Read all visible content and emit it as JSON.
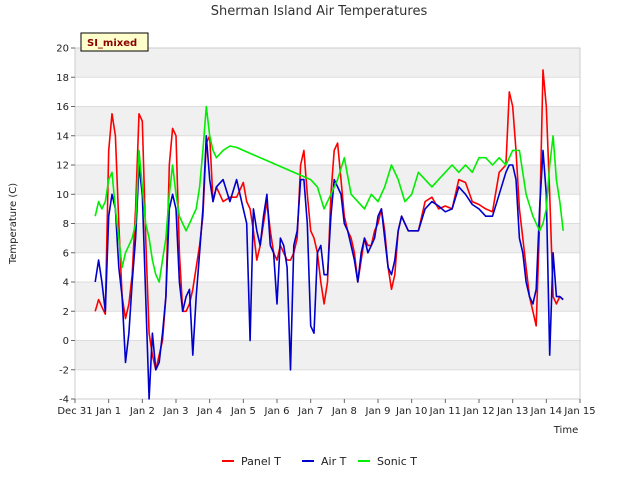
{
  "chart_data": {
    "type": "line",
    "title": "Sherman Island Air Temperatures",
    "xlabel": "Time",
    "ylabel": "Temperature (C)",
    "badge": "SI_mixed",
    "ylim": [
      -4,
      20
    ],
    "yticks": [
      -4,
      -2,
      0,
      2,
      4,
      6,
      8,
      10,
      12,
      14,
      16,
      18,
      20
    ],
    "xlim": [
      0,
      15
    ],
    "xticks": [
      {
        "x": 0,
        "label": "Dec 31"
      },
      {
        "x": 1,
        "label": "Jan 1"
      },
      {
        "x": 2,
        "label": "Jan 2"
      },
      {
        "x": 3,
        "label": "Jan 3"
      },
      {
        "x": 4,
        "label": "Jan 4"
      },
      {
        "x": 5,
        "label": "Jan 5"
      },
      {
        "x": 6,
        "label": "Jan 6"
      },
      {
        "x": 7,
        "label": "Jan 7"
      },
      {
        "x": 8,
        "label": "Jan 8"
      },
      {
        "x": 9,
        "label": "Jan 9"
      },
      {
        "x": 10,
        "label": "Jan 10"
      },
      {
        "x": 11,
        "label": "Jan 11"
      },
      {
        "x": 12,
        "label": "Jan 12"
      },
      {
        "x": 13,
        "label": "Jan 13"
      },
      {
        "x": 14,
        "label": "Jan 14"
      },
      {
        "x": 15,
        "label": "Jan 15"
      }
    ],
    "grid": true,
    "legend_position": "bottom-center",
    "series": [
      {
        "name": "Panel T",
        "color": "#ff0000",
        "x": [
          0.6,
          0.7,
          0.8,
          0.9,
          1.0,
          1.1,
          1.2,
          1.3,
          1.4,
          1.5,
          1.6,
          1.7,
          1.8,
          1.9,
          2.0,
          2.1,
          2.2,
          2.3,
          2.4,
          2.5,
          2.6,
          2.7,
          2.8,
          2.9,
          3.0,
          3.1,
          3.2,
          3.3,
          3.4,
          3.5,
          3.6,
          3.7,
          3.8,
          3.9,
          4.0,
          4.1,
          4.2,
          4.4,
          4.6,
          4.8,
          5.0,
          5.1,
          5.2,
          5.3,
          5.4,
          5.5,
          5.6,
          5.7,
          5.8,
          5.9,
          6.0,
          6.1,
          6.2,
          6.3,
          6.4,
          6.5,
          6.6,
          6.7,
          6.8,
          6.9,
          7.0,
          7.1,
          7.2,
          7.3,
          7.4,
          7.5,
          7.6,
          7.7,
          7.8,
          7.9,
          8.0,
          8.1,
          8.2,
          8.3,
          8.4,
          8.5,
          8.6,
          8.7,
          8.8,
          8.9,
          9.0,
          9.1,
          9.2,
          9.3,
          9.4,
          9.5,
          9.6,
          9.7,
          9.8,
          9.9,
          10.0,
          10.2,
          10.4,
          10.6,
          10.8,
          11.0,
          11.2,
          11.4,
          11.6,
          11.8,
          12.0,
          12.2,
          12.4,
          12.6,
          12.8,
          12.9,
          13.0,
          13.1,
          13.2,
          13.3,
          13.4,
          13.5,
          13.6,
          13.7,
          13.8,
          13.9,
          14.0,
          14.1,
          14.2,
          14.3,
          14.4,
          14.5
        ],
        "values": [
          2.0,
          2.8,
          2.3,
          1.8,
          13.0,
          15.5,
          14.0,
          8.0,
          3.0,
          1.5,
          2.5,
          4.5,
          9.0,
          15.5,
          15.0,
          7.0,
          0.5,
          -1.0,
          -2.0,
          -1.0,
          0.0,
          3.0,
          12.0,
          14.5,
          14.0,
          6.0,
          2.0,
          2.0,
          2.5,
          3.5,
          5.0,
          6.5,
          8.5,
          13.5,
          14.0,
          9.5,
          10.5,
          9.5,
          9.8,
          9.8,
          10.8,
          9.5,
          9.0,
          7.5,
          5.5,
          6.5,
          8.0,
          9.5,
          7.5,
          6.0,
          5.5,
          6.5,
          6.0,
          5.5,
          5.5,
          6.0,
          7.0,
          12.0,
          13.0,
          10.0,
          7.5,
          7.0,
          6.0,
          4.0,
          2.5,
          4.0,
          10.0,
          13.0,
          13.5,
          11.0,
          8.5,
          7.5,
          7.0,
          6.0,
          4.0,
          5.5,
          7.0,
          6.5,
          6.5,
          7.5,
          8.0,
          9.0,
          7.5,
          5.0,
          3.5,
          4.5,
          7.5,
          8.5,
          8.0,
          7.5,
          7.5,
          7.5,
          9.5,
          9.8,
          9.0,
          9.2,
          9.0,
          11.0,
          10.8,
          9.5,
          9.3,
          9.0,
          8.8,
          11.5,
          12.0,
          17.0,
          16.0,
          13.0,
          9.0,
          7.0,
          5.0,
          3.0,
          2.0,
          1.0,
          8.0,
          18.5,
          16.0,
          10.0,
          3.0,
          2.5,
          3.0,
          2.8
        ]
      },
      {
        "name": "Air T",
        "color": "#0000cc",
        "x": [
          0.6,
          0.7,
          0.8,
          0.9,
          1.0,
          1.1,
          1.2,
          1.3,
          1.4,
          1.5,
          1.6,
          1.7,
          1.8,
          1.9,
          2.0,
          2.1,
          2.2,
          2.3,
          2.4,
          2.5,
          2.6,
          2.7,
          2.8,
          2.9,
          3.0,
          3.1,
          3.2,
          3.3,
          3.4,
          3.5,
          3.6,
          3.7,
          3.8,
          3.9,
          4.0,
          4.1,
          4.2,
          4.4,
          4.6,
          4.8,
          5.0,
          5.1,
          5.2,
          5.3,
          5.4,
          5.5,
          5.6,
          5.7,
          5.8,
          5.9,
          6.0,
          6.1,
          6.2,
          6.3,
          6.4,
          6.5,
          6.6,
          6.7,
          6.8,
          6.9,
          7.0,
          7.1,
          7.2,
          7.3,
          7.4,
          7.5,
          7.6,
          7.7,
          7.8,
          7.9,
          8.0,
          8.1,
          8.2,
          8.3,
          8.4,
          8.5,
          8.6,
          8.7,
          8.8,
          8.9,
          9.0,
          9.1,
          9.2,
          9.3,
          9.4,
          9.5,
          9.6,
          9.7,
          9.8,
          9.9,
          10.0,
          10.2,
          10.4,
          10.6,
          10.8,
          11.0,
          11.2,
          11.4,
          11.6,
          11.8,
          12.0,
          12.2,
          12.4,
          12.6,
          12.8,
          12.9,
          13.0,
          13.1,
          13.2,
          13.3,
          13.4,
          13.5,
          13.6,
          13.7,
          13.8,
          13.9,
          14.0,
          14.1,
          14.2,
          14.3,
          14.4,
          14.5
        ],
        "values": [
          4.0,
          5.5,
          4.0,
          2.0,
          8.5,
          10.0,
          9.0,
          5.0,
          3.0,
          -1.5,
          0.5,
          4.0,
          7.0,
          12.0,
          10.0,
          3.0,
          -4.0,
          0.5,
          -2.0,
          -1.5,
          0.5,
          3.0,
          9.0,
          10.0,
          9.0,
          4.0,
          2.0,
          3.0,
          3.5,
          -1.0,
          3.0,
          6.0,
          9.0,
          14.0,
          11.0,
          9.5,
          10.5,
          11.0,
          9.5,
          11.0,
          9.0,
          8.0,
          0.0,
          9.0,
          7.5,
          6.5,
          8.5,
          10.0,
          6.5,
          6.0,
          2.5,
          7.0,
          6.5,
          5.0,
          -2.0,
          6.5,
          7.5,
          11.0,
          11.0,
          8.0,
          1.0,
          0.5,
          6.0,
          6.5,
          4.5,
          4.5,
          8.5,
          11.0,
          10.5,
          10.0,
          8.0,
          7.5,
          6.5,
          5.5,
          4.0,
          6.0,
          7.0,
          6.0,
          6.5,
          7.0,
          8.5,
          9.0,
          7.0,
          5.0,
          4.5,
          5.5,
          7.5,
          8.5,
          8.0,
          7.5,
          7.5,
          7.5,
          9.0,
          9.5,
          9.2,
          8.8,
          9.0,
          10.5,
          10.0,
          9.3,
          9.0,
          8.5,
          8.5,
          10.0,
          11.5,
          12.0,
          12.0,
          11.0,
          7.0,
          6.0,
          4.0,
          3.0,
          2.5,
          3.5,
          9.0,
          13.0,
          10.0,
          -1.0,
          6.0,
          3.0,
          3.0,
          2.8
        ]
      },
      {
        "name": "Sonic T",
        "color": "#00ee00",
        "x": [
          0.6,
          0.7,
          0.8,
          0.9,
          1.0,
          1.1,
          1.2,
          1.3,
          1.4,
          1.5,
          1.6,
          1.7,
          1.8,
          1.9,
          2.0,
          2.1,
          2.2,
          2.3,
          2.4,
          2.5,
          2.6,
          2.7,
          2.8,
          2.9,
          3.0,
          3.1,
          3.2,
          3.3,
          3.4,
          3.5,
          3.6,
          3.7,
          3.8,
          3.9,
          4.0,
          4.1,
          4.2,
          4.4,
          4.6,
          4.8,
          5.0,
          6.0,
          7.0,
          7.2,
          7.4,
          7.6,
          7.8,
          8.0,
          8.2,
          8.4,
          8.6,
          8.8,
          9.0,
          9.2,
          9.4,
          9.6,
          9.8,
          10.0,
          10.2,
          10.4,
          10.6,
          10.8,
          11.0,
          11.2,
          11.4,
          11.6,
          11.8,
          12.0,
          12.2,
          12.4,
          12.6,
          12.8,
          13.0,
          13.2,
          13.4,
          13.6,
          13.8,
          13.9,
          14.0,
          14.1,
          14.2,
          14.3,
          14.4,
          14.5
        ],
        "values": [
          8.5,
          9.5,
          9.0,
          9.5,
          11.0,
          11.5,
          9.0,
          7.0,
          5.0,
          6.0,
          6.5,
          7.0,
          8.0,
          13.0,
          10.5,
          8.0,
          7.0,
          5.5,
          4.5,
          4.0,
          5.5,
          7.0,
          10.0,
          12.0,
          10.0,
          8.5,
          8.0,
          7.5,
          8.0,
          8.5,
          9.0,
          10.5,
          13.0,
          16.0,
          14.0,
          13.0,
          12.5,
          13.0,
          13.3,
          13.2,
          13.0,
          12.0,
          11.0,
          10.5,
          9.0,
          10.0,
          11.0,
          12.5,
          10.0,
          9.5,
          9.0,
          10.0,
          9.5,
          10.5,
          12.0,
          11.0,
          9.5,
          10.0,
          11.5,
          11.0,
          10.5,
          11.0,
          11.5,
          12.0,
          11.5,
          12.0,
          11.5,
          12.5,
          12.5,
          12.0,
          12.5,
          12.0,
          13.0,
          13.0,
          10.0,
          8.5,
          7.5,
          8.0,
          9.0,
          12.0,
          14.0,
          11.0,
          9.5,
          7.5
        ]
      }
    ]
  }
}
